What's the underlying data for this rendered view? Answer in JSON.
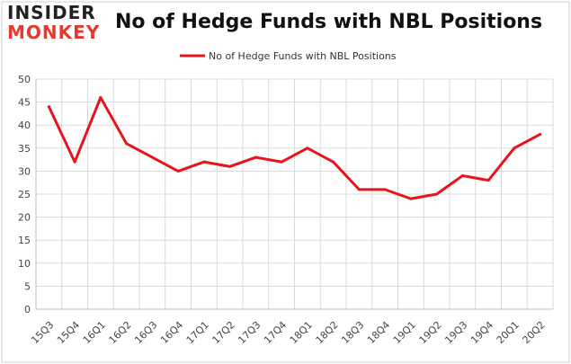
{
  "logo": {
    "line1": "INSIDER",
    "line2": "MONKEY"
  },
  "chart_data": {
    "type": "line",
    "title": "No of Hedge Funds with NBL Positions",
    "xlabel": "",
    "ylabel": "",
    "categories": [
      "15Q3",
      "15Q4",
      "16Q1",
      "16Q2",
      "16Q3",
      "16Q4",
      "17Q1",
      "17Q2",
      "17Q3",
      "17Q4",
      "18Q1",
      "18Q2",
      "18Q3",
      "18Q4",
      "19Q1",
      "19Q2",
      "19Q3",
      "19Q4",
      "20Q1",
      "20Q2"
    ],
    "series": [
      {
        "name": "No of Hedge Funds with NBL Positions",
        "values": [
          44,
          32,
          46,
          36,
          33,
          30,
          32,
          31,
          33,
          32,
          35,
          32,
          26,
          26,
          24,
          25,
          29,
          28,
          35,
          38
        ]
      }
    ],
    "ylim": [
      0,
      50
    ],
    "yticks": [
      0,
      5,
      10,
      15,
      20,
      25,
      30,
      35,
      40,
      45,
      50
    ],
    "grid": true,
    "legend_position": "top-center",
    "colors": {
      "line": "#e8141b",
      "grid": "#d9d9d9",
      "axis": "#bfbfbf"
    }
  }
}
